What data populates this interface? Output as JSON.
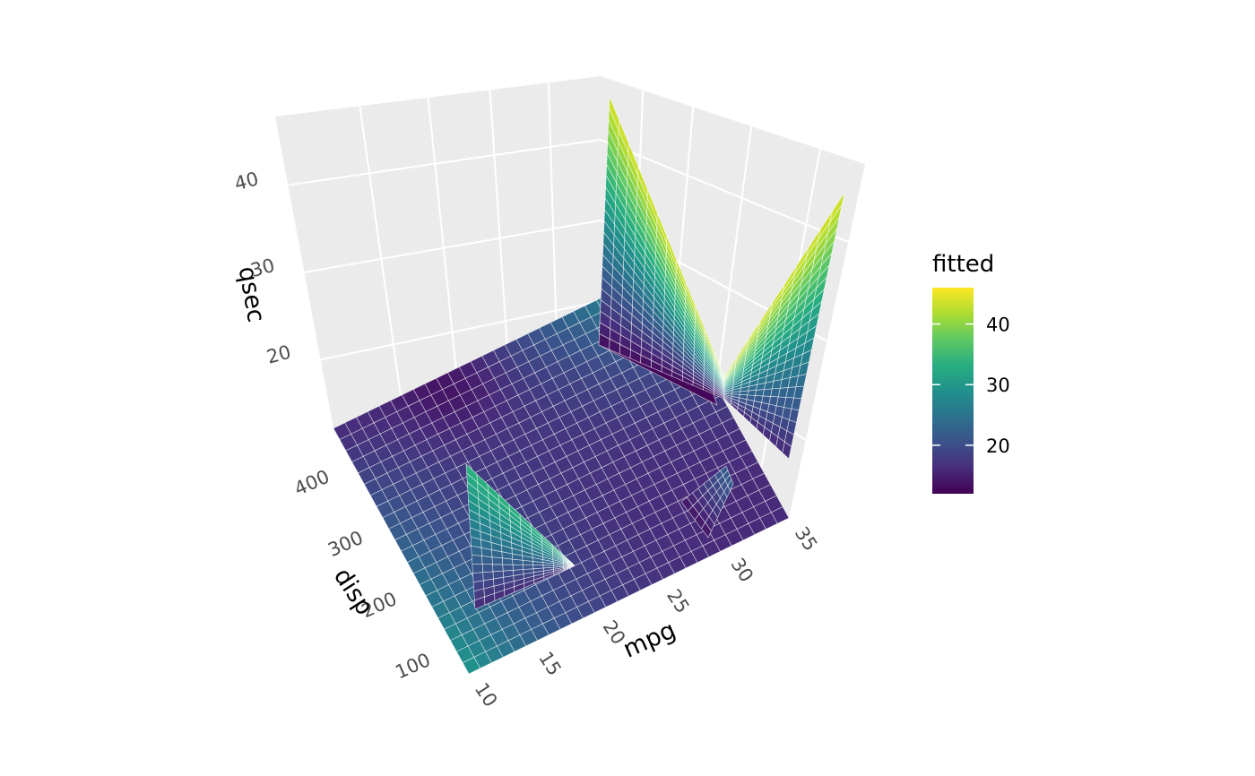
{
  "chart_data": {
    "type": "surface",
    "title": "",
    "x": {
      "label": "mpg",
      "ticks": [
        "10",
        "15",
        "20",
        "25",
        "30",
        "35"
      ],
      "range": [
        10,
        35
      ]
    },
    "y": {
      "label": "disp",
      "ticks": [
        "100",
        "200",
        "300",
        "400"
      ],
      "range": [
        70,
        472
      ]
    },
    "z": {
      "label": "qsec",
      "ticks": [
        "20",
        "30",
        "40"
      ],
      "range": [
        11,
        47
      ]
    },
    "grid": true,
    "panel_background": "#ebebeb",
    "fill_variable": "fitted",
    "legend": {
      "title": "fitted",
      "ticks": [
        "20",
        "30",
        "40"
      ],
      "range": [
        12,
        46
      ],
      "position": "right",
      "colormap": "viridis"
    },
    "surface": {
      "description": "fitted surface, fill colored by fitted value",
      "mpg_range": [
        10,
        35
      ],
      "disp_range": [
        70,
        472
      ],
      "fitted_range": [
        12,
        46
      ]
    }
  }
}
